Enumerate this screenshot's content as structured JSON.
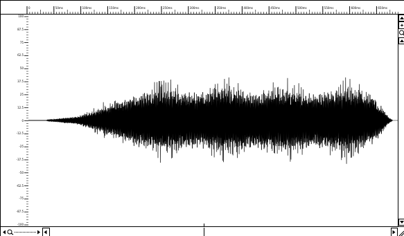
{
  "ruler": {
    "labels": [
      "0",
      "50ms",
      "100ms",
      "150ms",
      "200ms",
      "250ms",
      "300ms",
      "350ms",
      "400ms",
      "450ms",
      "500ms",
      "550ms",
      "600ms",
      "650ms"
    ]
  },
  "amplitude_axis": {
    "labels": [
      "100",
      "87.5",
      "75",
      "62.5",
      "50",
      "37.5",
      "25",
      "12.5",
      "0",
      "-12.5",
      "-25",
      "-37.5",
      "-50",
      "-62.5",
      "-75",
      "-87.5",
      "-100"
    ]
  },
  "waveform": {
    "duration_ms": 680,
    "amplitude_range": [
      -100,
      100
    ],
    "envelope": [
      {
        "t": 0,
        "a": 0
      },
      {
        "t": 35,
        "a": 0
      },
      {
        "t": 40,
        "a": 1
      },
      {
        "t": 60,
        "a": 3
      },
      {
        "t": 90,
        "a": 6
      },
      {
        "t": 120,
        "a": 12
      },
      {
        "t": 150,
        "a": 20
      },
      {
        "t": 180,
        "a": 32
      },
      {
        "t": 200,
        "a": 40
      },
      {
        "t": 230,
        "a": 42
      },
      {
        "t": 350,
        "a": 43
      },
      {
        "t": 450,
        "a": 44
      },
      {
        "t": 550,
        "a": 43
      },
      {
        "t": 620,
        "a": 43
      },
      {
        "t": 640,
        "a": 40
      },
      {
        "t": 660,
        "a": 20
      },
      {
        "t": 672,
        "a": 5
      },
      {
        "t": 680,
        "a": 0
      }
    ],
    "color": "#000000"
  },
  "colors": {
    "background": "#ffffff",
    "axis": "#000000"
  },
  "icons": {
    "zoom": "magnifier-icon",
    "scroll_left": "arrow-left-icon",
    "scroll_right": "arrow-right-icon",
    "scroll_up": "arrow-up-icon",
    "scroll_down": "arrow-down-icon"
  }
}
